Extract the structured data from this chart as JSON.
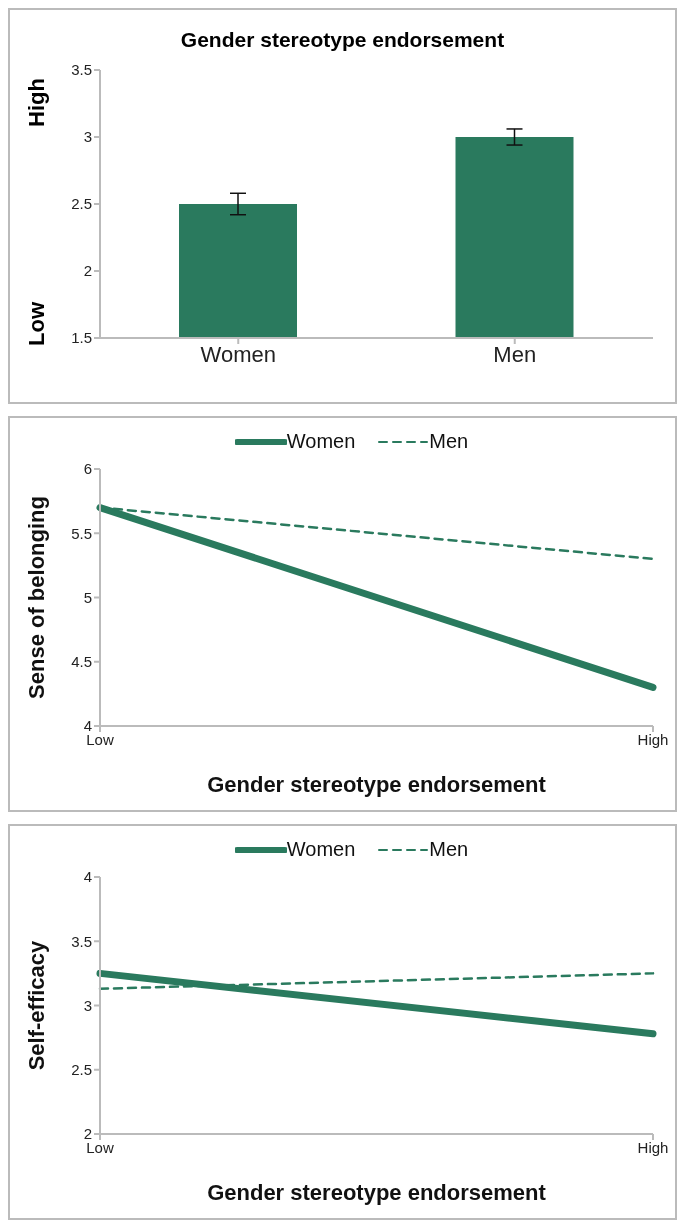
{
  "chart_data": [
    {
      "type": "bar",
      "title": "Gender stereotype endorsement",
      "categories": [
        "Women",
        "Men"
      ],
      "values": [
        2.5,
        3.0
      ],
      "errors": [
        0.08,
        0.06
      ],
      "color": "#2a7a5e",
      "ylim": [
        1.5,
        3.5
      ],
      "yticks": [
        1.5,
        2,
        2.5,
        3,
        3.5
      ],
      "annotations": [
        "High",
        "Low"
      ],
      "grid": false
    },
    {
      "type": "line",
      "xlabel": "Gender stereotype endorsement",
      "ylabel": "Sense of belonging",
      "categories": [
        "Low",
        "High"
      ],
      "ylim": [
        4,
        6
      ],
      "yticks": [
        4,
        4.5,
        5,
        5.5,
        6
      ],
      "legend": "top",
      "grid": false,
      "series": [
        {
          "name": "Women",
          "color": "#2a7a5e",
          "line_style": "solid",
          "values": [
            5.7,
            4.3
          ]
        },
        {
          "name": "Men",
          "color": "#2a7a5e",
          "line_style": "dashed",
          "values": [
            5.7,
            5.3
          ]
        }
      ]
    },
    {
      "type": "line",
      "xlabel": "Gender stereotype endorsement",
      "ylabel": "Self-efficacy",
      "categories": [
        "Low",
        "High"
      ],
      "ylim": [
        2,
        4
      ],
      "yticks": [
        2,
        2.5,
        3,
        3.5,
        4
      ],
      "legend": "top",
      "grid": false,
      "series": [
        {
          "name": "Women",
          "color": "#2a7a5e",
          "line_style": "solid",
          "values": [
            3.25,
            2.78
          ]
        },
        {
          "name": "Men",
          "color": "#2a7a5e",
          "line_style": "dashed",
          "values": [
            3.13,
            3.25
          ]
        }
      ]
    }
  ]
}
